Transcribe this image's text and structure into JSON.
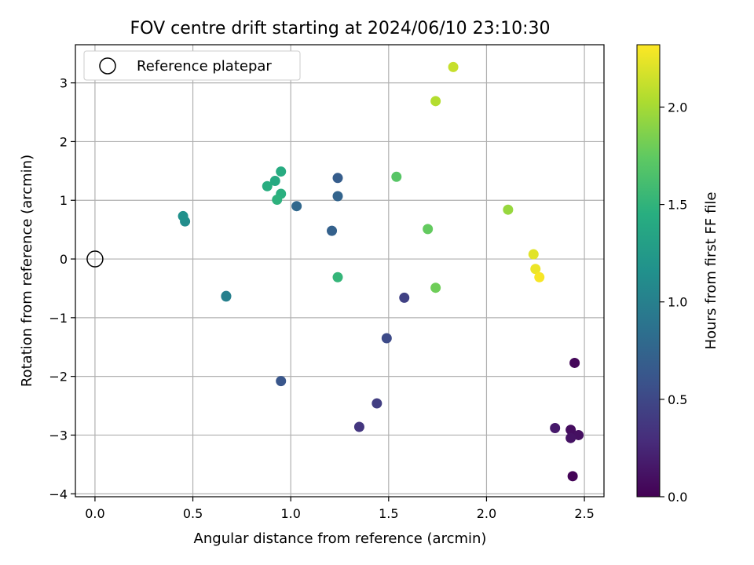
{
  "chart_data": {
    "type": "scatter",
    "title": "FOV centre drift starting at 2024/06/10 23:10:30",
    "xlabel": "Angular distance from reference (arcmin)",
    "ylabel": "Rotation from reference (arcmin)",
    "xlim": [
      -0.1,
      2.6
    ],
    "ylim": [
      -4.05,
      3.65
    ],
    "xticks": [
      0.0,
      0.5,
      1.0,
      1.5,
      2.0,
      2.5
    ],
    "xtick_labels": [
      "0.0",
      "0.5",
      "1.0",
      "1.5",
      "2.0",
      "2.5"
    ],
    "yticks": [
      -4,
      -3,
      -2,
      -1,
      0,
      1,
      2,
      3
    ],
    "ytick_labels": [
      "−4",
      "−3",
      "−2",
      "−1",
      "0",
      "1",
      "2",
      "3"
    ],
    "grid": true,
    "colormap": "viridis",
    "colorbar": {
      "label": "Hours from first FF file",
      "range": [
        0.0,
        2.32
      ],
      "ticks": [
        0.0,
        0.5,
        1.0,
        1.5,
        2.0
      ],
      "tick_labels": [
        "0.0",
        "0.5",
        "1.0",
        "1.5",
        "2.0"
      ]
    },
    "reference": {
      "x": 0.0,
      "y": 0.0,
      "label": "Reference platepar"
    },
    "legend_position": "upper-left",
    "points": [
      {
        "x": 2.44,
        "y": -3.7,
        "c": 0.02
      },
      {
        "x": 2.45,
        "y": -1.77,
        "c": 0.04
      },
      {
        "x": 2.43,
        "y": -2.91,
        "c": 0.08
      },
      {
        "x": 2.47,
        "y": -3.0,
        "c": 0.1
      },
      {
        "x": 2.43,
        "y": -3.05,
        "c": 0.12
      },
      {
        "x": 2.35,
        "y": -2.88,
        "c": 0.16
      },
      {
        "x": 1.35,
        "y": -2.86,
        "c": 0.36
      },
      {
        "x": 1.44,
        "y": -2.46,
        "c": 0.42
      },
      {
        "x": 1.58,
        "y": -0.66,
        "c": 0.45
      },
      {
        "x": 1.49,
        "y": -1.35,
        "c": 0.52
      },
      {
        "x": 0.95,
        "y": -2.08,
        "c": 0.62
      },
      {
        "x": 1.24,
        "y": 1.38,
        "c": 0.68
      },
      {
        "x": 1.21,
        "y": 0.48,
        "c": 0.72
      },
      {
        "x": 1.03,
        "y": 0.9,
        "c": 0.78
      },
      {
        "x": 1.24,
        "y": 1.07,
        "c": 0.74
      },
      {
        "x": 0.67,
        "y": -0.63,
        "c": 0.96
      },
      {
        "x": 0.67,
        "y": -0.64,
        "c": 1.0
      },
      {
        "x": 0.46,
        "y": 0.64,
        "c": 1.12
      },
      {
        "x": 0.45,
        "y": 0.73,
        "c": 1.16
      },
      {
        "x": 0.92,
        "y": 1.33,
        "c": 1.4
      },
      {
        "x": 0.95,
        "y": 1.49,
        "c": 1.42
      },
      {
        "x": 0.88,
        "y": 1.24,
        "c": 1.44
      },
      {
        "x": 0.95,
        "y": 1.11,
        "c": 1.46
      },
      {
        "x": 0.93,
        "y": 1.01,
        "c": 1.48
      },
      {
        "x": 1.24,
        "y": -0.31,
        "c": 1.52
      },
      {
        "x": 1.54,
        "y": 1.4,
        "c": 1.7
      },
      {
        "x": 1.7,
        "y": 0.51,
        "c": 1.76
      },
      {
        "x": 1.74,
        "y": -0.49,
        "c": 1.8
      },
      {
        "x": 2.11,
        "y": 0.84,
        "c": 1.95
      },
      {
        "x": 1.74,
        "y": 2.69,
        "c": 2.05
      },
      {
        "x": 1.83,
        "y": 3.27,
        "c": 2.12
      },
      {
        "x": 2.24,
        "y": 0.08,
        "c": 2.22
      },
      {
        "x": 2.25,
        "y": -0.17,
        "c": 2.26
      },
      {
        "x": 2.27,
        "y": -0.31,
        "c": 2.3
      }
    ]
  }
}
